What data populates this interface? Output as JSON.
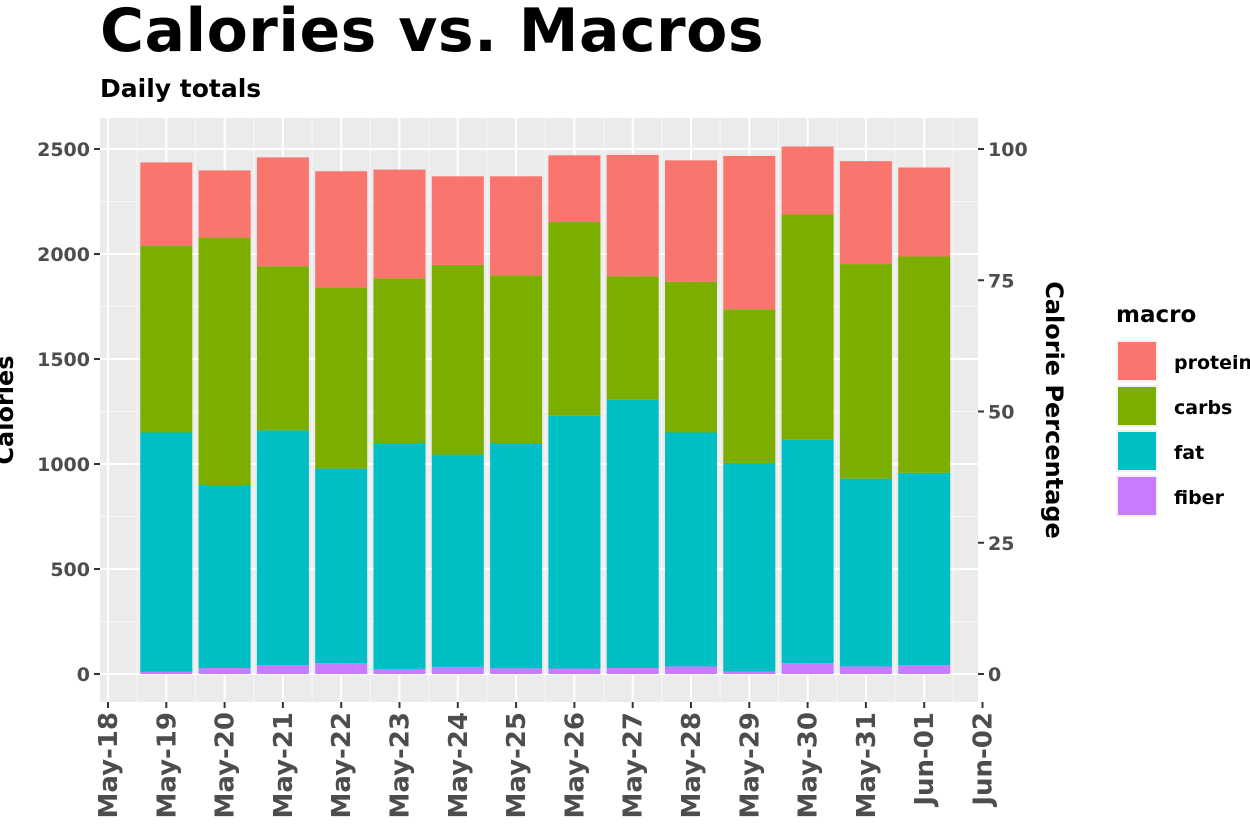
{
  "chart_data": {
    "type": "bar",
    "stacked": true,
    "title": "Calories vs. Macros",
    "subtitle": "Daily totals",
    "ylabel": "Calories",
    "y2label": "Calorie Percentage",
    "ylim": [
      0,
      2600
    ],
    "y_ticks": [
      0,
      500,
      1000,
      1500,
      2000,
      2500
    ],
    "y2_ticks": [
      0,
      25,
      50,
      75,
      100
    ],
    "xlim": [
      "May-18",
      "Jun-02"
    ],
    "x_ticks": [
      "May-18",
      "May-19",
      "May-20",
      "May-21",
      "May-22",
      "May-23",
      "May-24",
      "May-25",
      "May-26",
      "May-27",
      "May-28",
      "May-29",
      "May-30",
      "May-31",
      "Jun-01",
      "Jun-02"
    ],
    "categories": [
      "May-19",
      "May-20",
      "May-21",
      "May-22",
      "May-23",
      "May-24",
      "May-25",
      "May-26",
      "May-27",
      "May-28",
      "May-29",
      "May-30",
      "May-31",
      "Jun-01"
    ],
    "legend": {
      "title": "macro",
      "position": "right"
    },
    "grid": true,
    "series": [
      {
        "name": "fiber",
        "color": "#C77CFF",
        "values": [
          10,
          28,
          42,
          52,
          24,
          34,
          27,
          26,
          28,
          36,
          12,
          52,
          36,
          42
        ]
      },
      {
        "name": "fat",
        "color": "#00BFC4",
        "values": [
          1140,
          872,
          1118,
          926,
          1076,
          1011,
          1073,
          1204,
          1278,
          1114,
          993,
          1063,
          894,
          916
        ]
      },
      {
        "name": "carbs",
        "color": "#7CAE00",
        "values": [
          888,
          1178,
          782,
          862,
          784,
          903,
          798,
          922,
          588,
          718,
          732,
          1073,
          1022,
          1030
        ]
      },
      {
        "name": "protein",
        "color": "#F8766D",
        "values": [
          398,
          320,
          518,
          554,
          518,
          422,
          472,
          318,
          578,
          578,
          730,
          324,
          490,
          424
        ]
      }
    ]
  }
}
